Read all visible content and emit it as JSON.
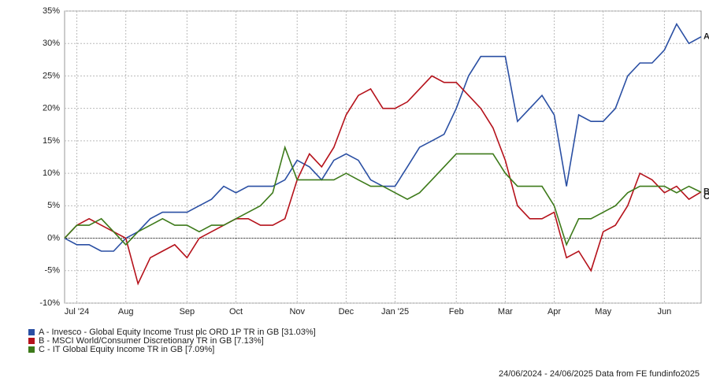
{
  "chart_data": {
    "type": "line",
    "categories": [
      null,
      "Jul '24",
      null,
      null,
      null,
      "Aug",
      null,
      null,
      null,
      null,
      "Sep",
      null,
      null,
      null,
      "Oct",
      null,
      null,
      null,
      null,
      "Nov",
      null,
      null,
      null,
      "Dec",
      null,
      null,
      null,
      "Jan '25",
      null,
      null,
      null,
      null,
      "Feb",
      null,
      null,
      null,
      "Mar",
      null,
      null,
      null,
      "Apr",
      null,
      null,
      null,
      "May",
      null,
      null,
      null,
      null,
      "Jun",
      null,
      null,
      null
    ],
    "series": [
      {
        "name": "A - Invesco - Global Equity Income Trust plc ORD 1P TR in GB [31.03%]",
        "label": "A",
        "color": "#2a4fa3",
        "values": [
          0,
          -1,
          -1,
          -2,
          -2,
          0,
          1,
          3,
          4,
          4,
          4,
          5,
          6,
          8,
          7,
          8,
          8,
          8,
          9,
          12,
          11,
          9,
          12,
          13,
          12,
          9,
          8,
          8,
          11,
          14,
          15,
          16,
          20,
          25,
          28,
          28,
          28,
          18,
          20,
          22,
          19,
          8,
          19,
          18,
          18,
          20,
          25,
          27,
          27,
          29,
          33,
          30,
          31.03
        ]
      },
      {
        "name": "B - MSCI World/Consumer Discretionary TR in GB [7.13%]",
        "label": "B",
        "color": "#b5121b",
        "values": [
          0,
          2,
          3,
          2,
          1,
          0,
          -7,
          -3,
          -2,
          -1,
          -3,
          0,
          1,
          2,
          3,
          3,
          2,
          2,
          3,
          9,
          13,
          11,
          14,
          19,
          22,
          23,
          20,
          20,
          21,
          23,
          25,
          24,
          24,
          22,
          20,
          17,
          12,
          5,
          3,
          3,
          4,
          -3,
          -2,
          -5,
          1,
          2,
          5,
          10,
          9,
          7,
          8,
          6,
          7.13
        ]
      },
      {
        "name": "C - IT Global Equity Income TR in GB [7.09%]",
        "label": "C",
        "color": "#3d7a1a",
        "values": [
          0,
          2,
          2,
          3,
          1,
          -1,
          1,
          2,
          3,
          2,
          2,
          1,
          2,
          2,
          3,
          4,
          5,
          7,
          14,
          9,
          9,
          9,
          9,
          10,
          9,
          8,
          8,
          7,
          6,
          7,
          9,
          11,
          13,
          13,
          13,
          13,
          10,
          8,
          8,
          8,
          5,
          -1,
          3,
          3,
          4,
          5,
          7,
          8,
          8,
          8,
          7,
          8,
          7.09
        ]
      }
    ],
    "ylim": [
      -10,
      35
    ],
    "yticks": [
      {
        "value": -10,
        "label": "-10%"
      },
      {
        "value": -5,
        "label": "-5%"
      },
      {
        "value": 0,
        "label": "0%"
      },
      {
        "value": 5,
        "label": "5%"
      },
      {
        "value": 10,
        "label": "10%"
      },
      {
        "value": 15,
        "label": "15%"
      },
      {
        "value": 20,
        "label": "20%"
      },
      {
        "value": 25,
        "label": "25%"
      },
      {
        "value": 30,
        "label": "30%"
      },
      {
        "value": 35,
        "label": "35%"
      }
    ],
    "grid": true,
    "footer": "24/06/2024 - 24/06/2025 Data from FE fundinfo2025"
  }
}
